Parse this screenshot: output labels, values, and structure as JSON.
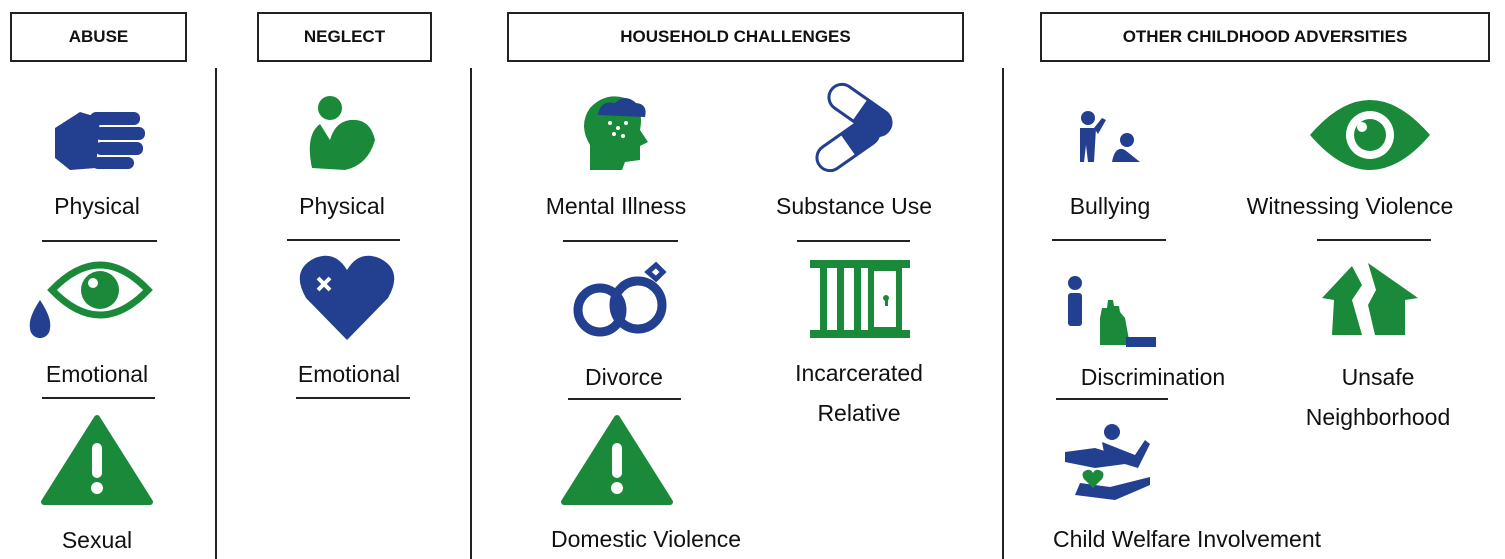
{
  "sections": [
    {
      "title": "ABUSE",
      "items": [
        "Physical",
        "Emotional",
        "Sexual"
      ]
    },
    {
      "title": "NEGLECT",
      "items": [
        "Physical",
        "Emotional"
      ]
    },
    {
      "title": "HOUSEHOLD CHALLENGES",
      "items": [
        "Mental Illness",
        "Substance Use",
        "Divorce",
        "Incarcerated Relative",
        "Domestic Violence"
      ]
    },
    {
      "title": "OTHER CHILDHOOD ADVERSITIES",
      "items": [
        "Bullying",
        "Witnessing Violence",
        "Discrimination",
        "Unsafe Neighborhood",
        "Child Welfare Involvement"
      ]
    }
  ]
}
